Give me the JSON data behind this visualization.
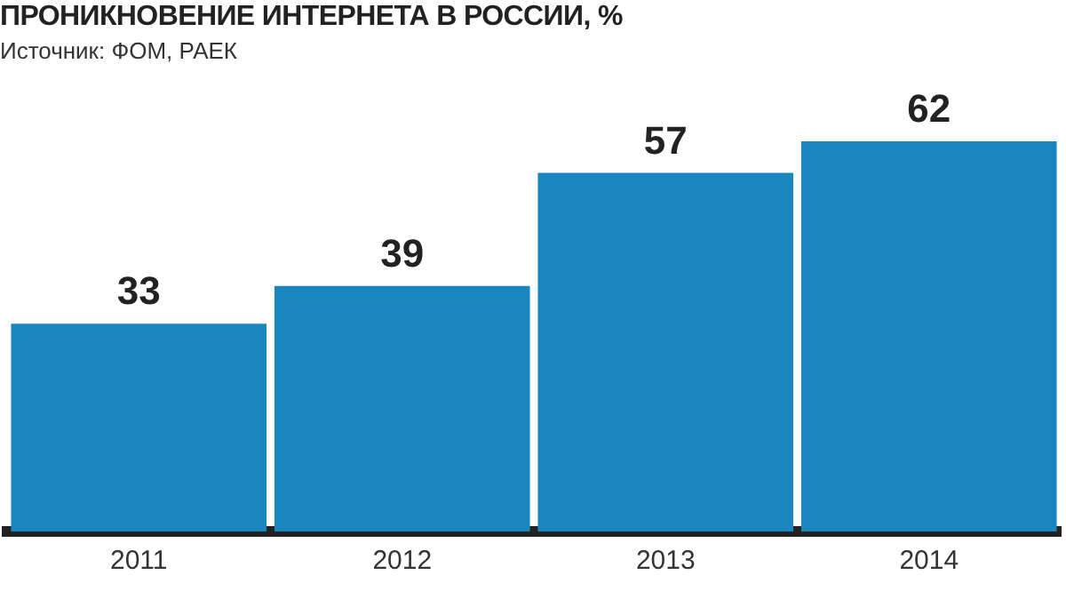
{
  "chart_data": {
    "type": "bar",
    "title": "ПРОНИКНОВЕНИЕ ИНТЕРНЕТА В РОССИИ, %",
    "annotations": [
      "Источник: ФОМ, РАЕК"
    ],
    "categories": [
      "2011",
      "2012",
      "2013",
      "2014"
    ],
    "values": [
      33,
      39,
      57,
      62
    ],
    "color": "#1a86c0",
    "data_labels": true,
    "grid": false,
    "legend": false
  }
}
